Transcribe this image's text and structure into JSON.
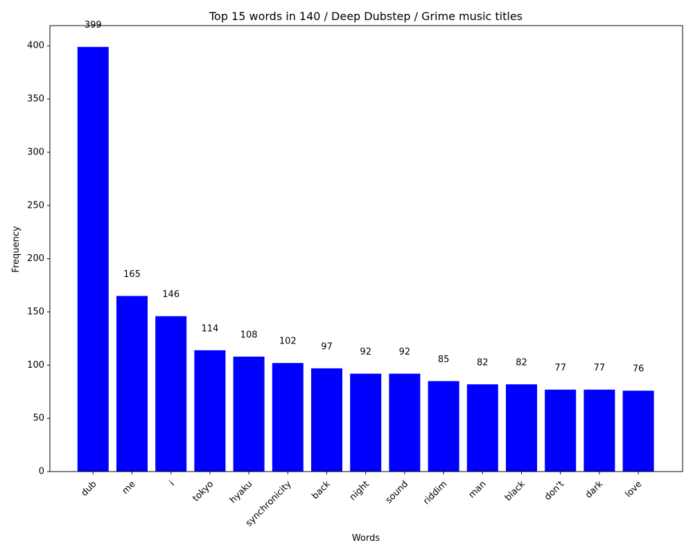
{
  "chart_data": {
    "type": "bar",
    "title": "Top 15 words in 140 / Deep Dubstep / Grime music titles",
    "xlabel": "Words",
    "ylabel": "Frequency",
    "categories": [
      "dub",
      "me",
      "i",
      "tokyo",
      "hyaku",
      "synchronicity",
      "back",
      "night",
      "sound",
      "riddim",
      "man",
      "black",
      "don't",
      "dark",
      "love"
    ],
    "values": [
      399,
      165,
      146,
      114,
      108,
      102,
      97,
      92,
      92,
      85,
      82,
      82,
      77,
      77,
      76
    ],
    "data_labels": [
      "399",
      "165",
      "146",
      "114",
      "108",
      "102",
      "97",
      "92",
      "92",
      "85",
      "82",
      "82",
      "77",
      "77",
      "76"
    ],
    "ylim": [
      0,
      419
    ],
    "yticks": [
      0,
      50,
      100,
      150,
      200,
      250,
      300,
      350,
      400
    ],
    "bar_color": "#0000ff",
    "grid": false,
    "x_tick_rotation_deg": 45
  }
}
